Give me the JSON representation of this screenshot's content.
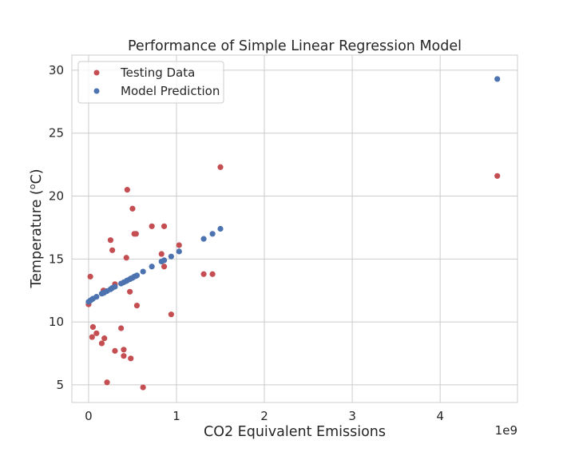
{
  "chart_data": {
    "type": "scatter",
    "title": "Performance of Simple Linear Regression Model",
    "xlabel": "CO2 Equivalent Emissions",
    "ylabel_main": "Temperature (",
    "ylabel_sup": "o",
    "ylabel_end": "C)",
    "x_offset_label": "1e9",
    "xlim": [
      -0.19,
      4.88
    ],
    "ylim": [
      3.6,
      31.2
    ],
    "xticks": [
      0,
      1,
      2,
      3,
      4
    ],
    "xtick_labels": [
      "0",
      "1",
      "2",
      "3",
      "4"
    ],
    "yticks": [
      5,
      10,
      15,
      20,
      25,
      30
    ],
    "ytick_labels": [
      "5",
      "10",
      "15",
      "20",
      "25",
      "30"
    ],
    "grid": true,
    "legend_position": "top-left",
    "series": [
      {
        "name": "Testing Data",
        "color": "#c44e52",
        "points": [
          [
            0.0,
            11.4
          ],
          [
            0.02,
            13.6
          ],
          [
            0.04,
            8.8
          ],
          [
            0.05,
            9.6
          ],
          [
            0.09,
            9.1
          ],
          [
            0.15,
            8.3
          ],
          [
            0.17,
            12.5
          ],
          [
            0.18,
            8.7
          ],
          [
            0.21,
            5.2
          ],
          [
            0.25,
            16.5
          ],
          [
            0.27,
            15.7
          ],
          [
            0.3,
            13.0
          ],
          [
            0.3,
            7.7
          ],
          [
            0.37,
            9.5
          ],
          [
            0.4,
            7.8
          ],
          [
            0.4,
            7.3
          ],
          [
            0.43,
            15.1
          ],
          [
            0.44,
            20.5
          ],
          [
            0.47,
            12.4
          ],
          [
            0.48,
            7.1
          ],
          [
            0.5,
            19.0
          ],
          [
            0.52,
            17.0
          ],
          [
            0.54,
            17.0
          ],
          [
            0.55,
            11.3
          ],
          [
            0.62,
            4.8
          ],
          [
            0.72,
            17.6
          ],
          [
            0.83,
            15.4
          ],
          [
            0.86,
            17.6
          ],
          [
            0.86,
            14.4
          ],
          [
            0.94,
            10.6
          ],
          [
            1.03,
            16.1
          ],
          [
            1.31,
            13.8
          ],
          [
            1.41,
            13.8
          ],
          [
            1.5,
            22.3
          ],
          [
            4.65,
            21.6
          ]
        ]
      },
      {
        "name": "Model Prediction",
        "color": "#4c72b0",
        "points": [
          [
            0.0,
            11.6
          ],
          [
            0.02,
            11.7
          ],
          [
            0.04,
            11.8
          ],
          [
            0.05,
            11.85
          ],
          [
            0.09,
            12.0
          ],
          [
            0.15,
            12.25
          ],
          [
            0.17,
            12.3
          ],
          [
            0.18,
            12.35
          ],
          [
            0.21,
            12.45
          ],
          [
            0.25,
            12.6
          ],
          [
            0.27,
            12.7
          ],
          [
            0.3,
            12.8
          ],
          [
            0.37,
            13.05
          ],
          [
            0.4,
            13.15
          ],
          [
            0.43,
            13.25
          ],
          [
            0.44,
            13.3
          ],
          [
            0.47,
            13.4
          ],
          [
            0.48,
            13.45
          ],
          [
            0.5,
            13.5
          ],
          [
            0.52,
            13.6
          ],
          [
            0.54,
            13.65
          ],
          [
            0.55,
            13.7
          ],
          [
            0.62,
            14.0
          ],
          [
            0.72,
            14.4
          ],
          [
            0.83,
            14.8
          ],
          [
            0.86,
            14.9
          ],
          [
            0.94,
            15.2
          ],
          [
            1.03,
            15.6
          ],
          [
            1.31,
            16.6
          ],
          [
            1.41,
            17.0
          ],
          [
            1.5,
            17.4
          ],
          [
            4.65,
            29.3
          ]
        ]
      }
    ]
  }
}
